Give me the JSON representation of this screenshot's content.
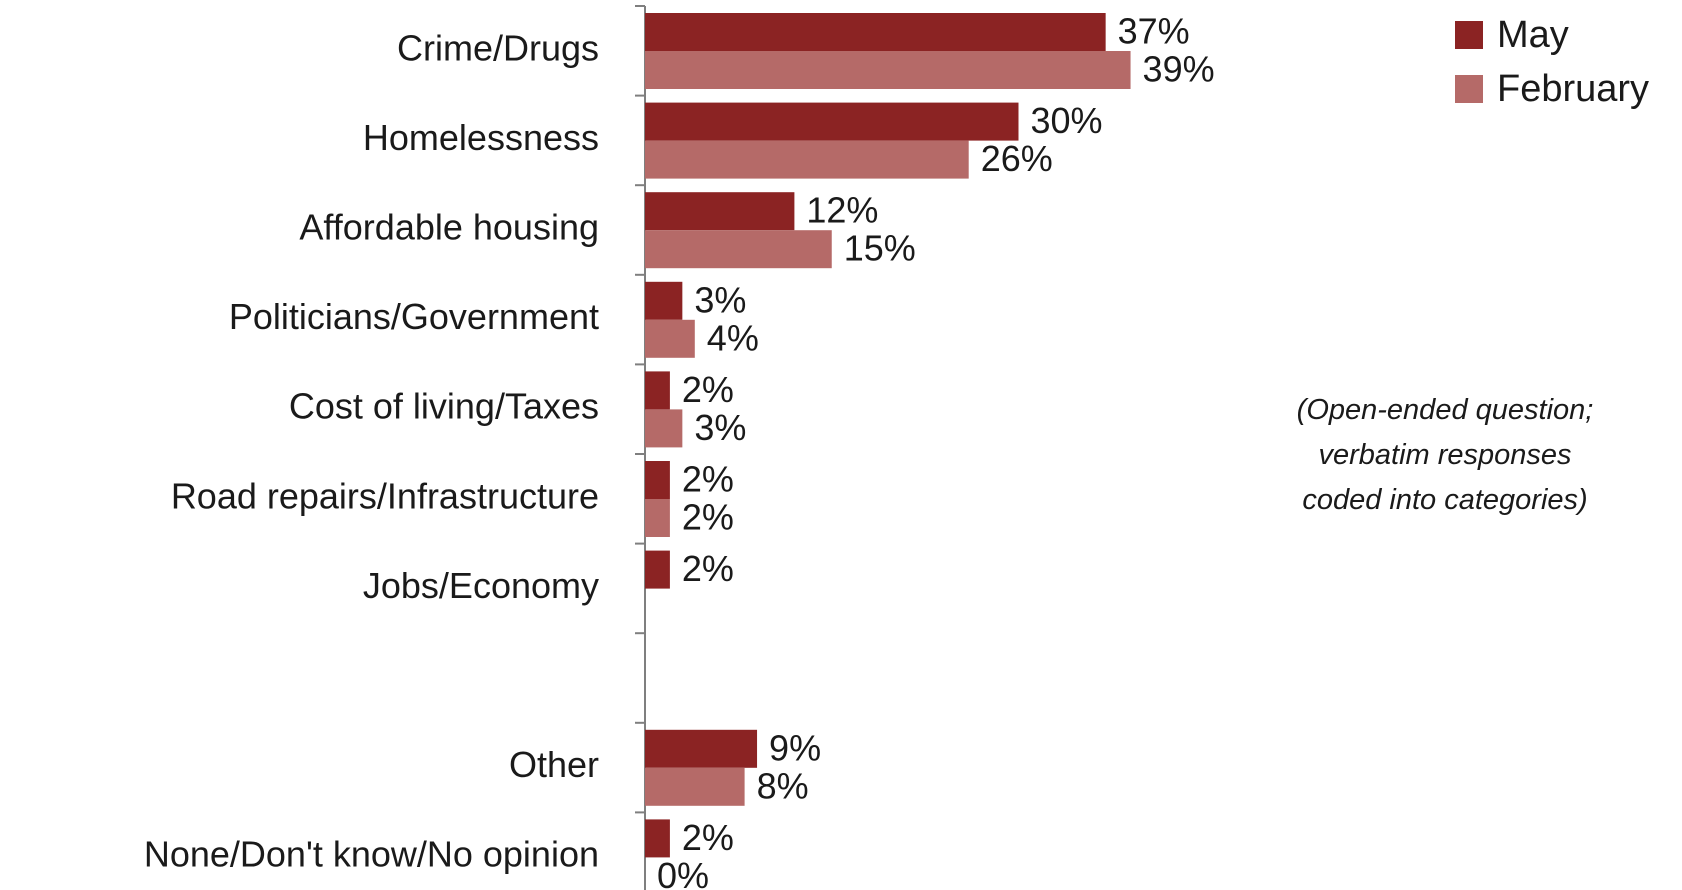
{
  "chart_data": {
    "type": "bar",
    "orientation": "horizontal",
    "categories": [
      "Crime/Drugs",
      "Homelessness",
      "Affordable housing",
      "Politicians/Government",
      "Cost of living/Taxes",
      "Road repairs/Infrastructure",
      "Jobs/Economy",
      "",
      "Other",
      "None/Don't know/No opinion"
    ],
    "series": [
      {
        "name": "May",
        "color": "#8b2323",
        "values": [
          37,
          30,
          12,
          3,
          2,
          2,
          2,
          null,
          9,
          2
        ],
        "labels": [
          "37%",
          "30%",
          "12%",
          "3%",
          "2%",
          "2%",
          "2%",
          "",
          "9%",
          "2%"
        ]
      },
      {
        "name": "February",
        "color": "#b56a68",
        "values": [
          39,
          26,
          15,
          4,
          3,
          2,
          null,
          null,
          8,
          0
        ],
        "labels": [
          "39%",
          "26%",
          "15%",
          "4%",
          "3%",
          "2%",
          "",
          "",
          "8%",
          "0%"
        ]
      }
    ],
    "xlim": [
      0,
      45
    ],
    "grid": false,
    "legend_position": "top-right",
    "annotation": [
      "(Open-ended question;",
      "verbatim responses",
      "coded into categories)"
    ]
  }
}
